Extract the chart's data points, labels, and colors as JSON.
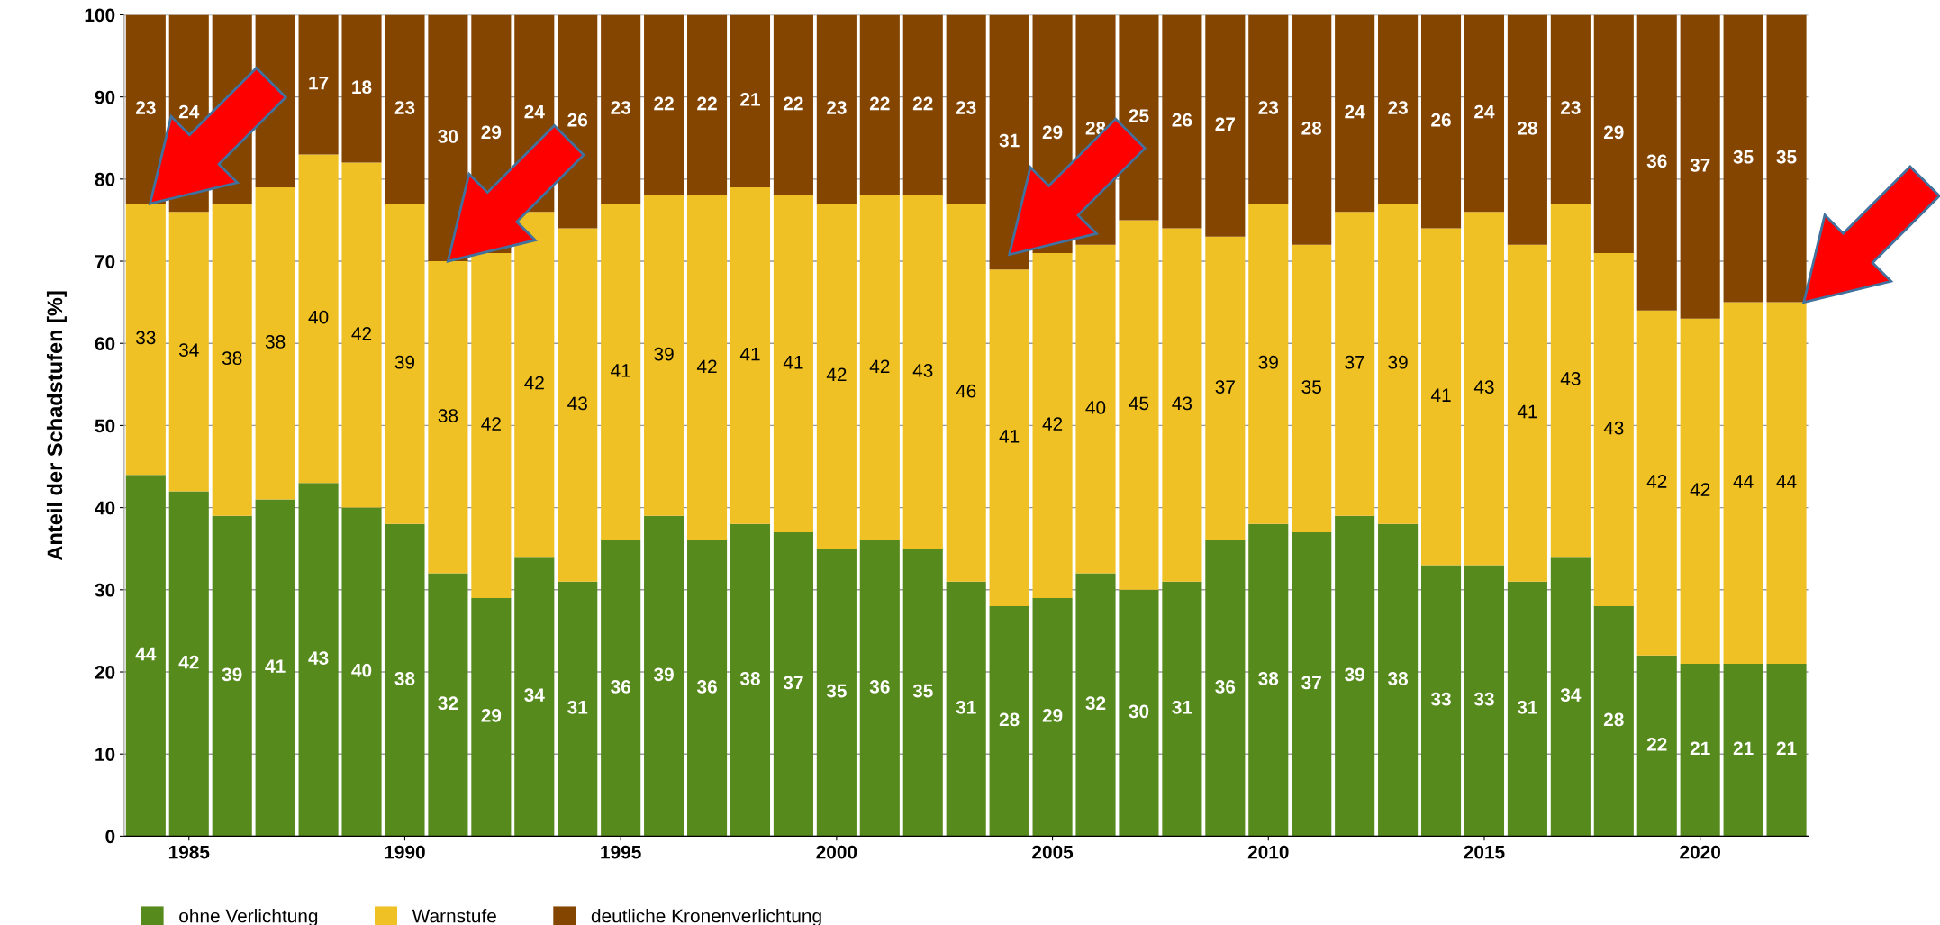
{
  "chart_data": {
    "type": "bar",
    "stacked": true,
    "ylabel": "Anteil der Schadstufen [%]",
    "x": [
      1984,
      1985,
      1986,
      1987,
      1988,
      1989,
      1990,
      1991,
      1992,
      1993,
      1994,
      1995,
      1996,
      1997,
      1998,
      1999,
      2000,
      2001,
      2002,
      2003,
      2004,
      2005,
      2006,
      2007,
      2008,
      2009,
      2010,
      2011,
      2012,
      2013,
      2014,
      2015,
      2016,
      2017,
      2018,
      2019,
      2020,
      2021,
      2022
    ],
    "xlim": [
      1983.5,
      2022.5
    ],
    "xticks": [
      1985,
      1990,
      1995,
      2000,
      2005,
      2010,
      2015,
      2020
    ],
    "ylim": [
      0,
      100
    ],
    "yticks": [
      0,
      10,
      20,
      30,
      40,
      50,
      60,
      70,
      80,
      90,
      100
    ],
    "grid": "y",
    "legend": "bottom",
    "series": [
      {
        "name": "ohne Verlichtung",
        "color": "#568a1c",
        "values": [
          44,
          42,
          39,
          41,
          43,
          40,
          38,
          32,
          29,
          34,
          31,
          36,
          39,
          36,
          38,
          37,
          35,
          36,
          35,
          31,
          28,
          29,
          32,
          30,
          31,
          36,
          38,
          37,
          39,
          38,
          33,
          33,
          31,
          34,
          28,
          22,
          21,
          21,
          21
        ],
        "value_labels": [
          "44",
          "42",
          "39",
          "41",
          "43",
          "40",
          "38",
          "32",
          "29",
          "34",
          "31",
          "36",
          "39",
          "36",
          "38",
          "37",
          "35",
          "36",
          "35",
          "31",
          "28",
          "29",
          "32",
          "30",
          "31",
          "36",
          "38",
          "37",
          "39",
          "38",
          "33",
          "33",
          "31",
          "34",
          "28",
          "22",
          "21",
          "21",
          "21"
        ]
      },
      {
        "name": "Warnstufe",
        "color": "#f0c125",
        "values": [
          33,
          34,
          38,
          38,
          40,
          42,
          39,
          38,
          42,
          42,
          43,
          41,
          39,
          42,
          41,
          41,
          42,
          42,
          43,
          46,
          41,
          42,
          40,
          45,
          43,
          37,
          39,
          35,
          37,
          39,
          41,
          43,
          41,
          43,
          43,
          42,
          42,
          44,
          44
        ],
        "value_labels": [
          "33",
          "34",
          "38",
          "38",
          "40",
          "42",
          "39",
          "38",
          "42",
          "42",
          "43",
          "41",
          "39",
          "42",
          "41",
          "41",
          "42",
          "42",
          "43",
          "46",
          "41",
          "42",
          "40",
          "45",
          "43",
          "37",
          "39",
          "35",
          "37",
          "39",
          "41",
          "43",
          "41",
          "43",
          "43",
          "42",
          "42",
          "44",
          "44"
        ]
      },
      {
        "name": "deutliche Kronenverlichtung",
        "color": "#844500",
        "values": [
          23,
          24,
          23,
          21,
          17,
          18,
          23,
          30,
          29,
          24,
          26,
          23,
          22,
          22,
          21,
          22,
          23,
          22,
          22,
          23,
          31,
          29,
          28,
          25,
          26,
          27,
          23,
          28,
          24,
          23,
          26,
          24,
          28,
          23,
          29,
          36,
          37,
          35,
          35
        ],
        "value_labels": [
          "23",
          "24",
          null,
          null,
          "17",
          "18",
          "23",
          "30",
          "29",
          "24",
          "26",
          "23",
          "22",
          "22",
          "21",
          "22",
          "23",
          "22",
          "22",
          "23",
          "31",
          "29",
          "28",
          "25",
          "26",
          "27",
          "23",
          "28",
          "24",
          "23",
          "26",
          "24",
          "28",
          "23",
          "29",
          "36",
          "37",
          "35",
          "35"
        ]
      }
    ]
  }
}
